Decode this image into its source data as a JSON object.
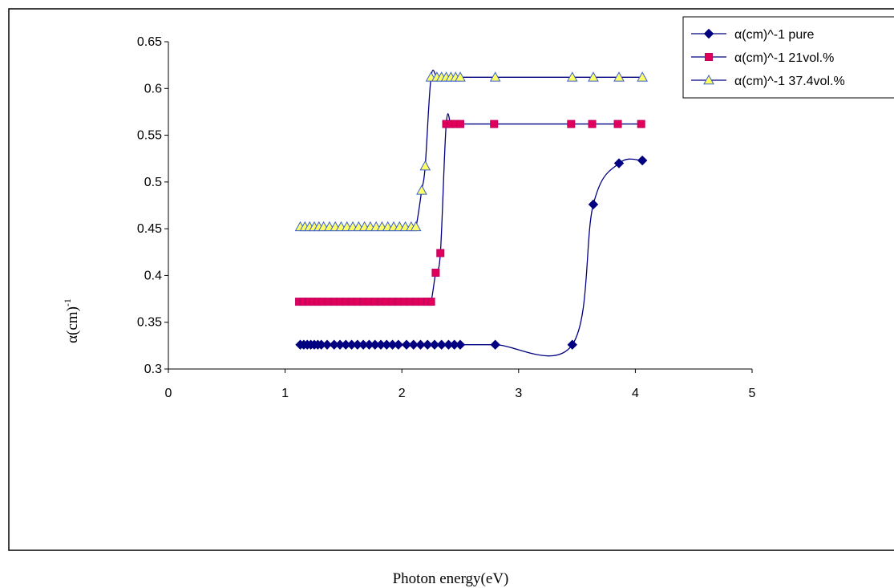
{
  "chart_data": {
    "type": "line",
    "title": "",
    "xlabel": "Photon energy(eV)",
    "ylabel": "α(cm)",
    "ylabel_superscript": "-1",
    "xlim": [
      0,
      5
    ],
    "ylim": [
      0.3,
      0.65
    ],
    "x_ticks": [
      "0",
      "1",
      "2",
      "3",
      "4",
      "5"
    ],
    "y_ticks": [
      "0.3",
      "0.35",
      "0.4",
      "0.45",
      "0.5",
      "0.55",
      "0.6",
      "0.65"
    ],
    "grid": false,
    "legend_position": "top-right",
    "series": [
      {
        "name": "α(cm)^-1 pure",
        "color": "#000080",
        "marker": "diamond",
        "marker_fill": "#000080",
        "x": [
          1.13,
          1.16,
          1.19,
          1.22,
          1.25,
          1.28,
          1.31,
          1.36,
          1.42,
          1.47,
          1.52,
          1.57,
          1.62,
          1.67,
          1.72,
          1.77,
          1.82,
          1.87,
          1.92,
          1.97,
          2.04,
          2.1,
          2.16,
          2.22,
          2.28,
          2.34,
          2.4,
          2.45,
          2.5,
          2.8,
          3.46,
          3.64,
          3.86,
          4.06
        ],
        "y": [
          0.326,
          0.326,
          0.326,
          0.326,
          0.326,
          0.326,
          0.326,
          0.326,
          0.326,
          0.326,
          0.326,
          0.326,
          0.326,
          0.326,
          0.326,
          0.326,
          0.326,
          0.326,
          0.326,
          0.326,
          0.326,
          0.326,
          0.326,
          0.326,
          0.326,
          0.326,
          0.326,
          0.326,
          0.326,
          0.326,
          0.326,
          0.476,
          0.52,
          0.523
        ]
      },
      {
        "name": "α(cm)^-1 21vol.%",
        "color": "#000080",
        "marker": "square",
        "marker_fill": "#e0005a",
        "x": [
          1.12,
          1.16,
          1.2,
          1.24,
          1.28,
          1.32,
          1.37,
          1.42,
          1.47,
          1.52,
          1.57,
          1.62,
          1.67,
          1.72,
          1.77,
          1.82,
          1.87,
          1.92,
          1.97,
          2.02,
          2.07,
          2.12,
          2.17,
          2.22,
          2.25,
          2.29,
          2.33,
          2.38,
          2.42,
          2.46,
          2.5,
          2.79,
          3.45,
          3.63,
          3.85,
          4.05
        ],
        "y": [
          0.372,
          0.372,
          0.372,
          0.372,
          0.372,
          0.372,
          0.372,
          0.372,
          0.372,
          0.372,
          0.372,
          0.372,
          0.372,
          0.372,
          0.372,
          0.372,
          0.372,
          0.372,
          0.372,
          0.372,
          0.372,
          0.372,
          0.372,
          0.372,
          0.372,
          0.403,
          0.424,
          0.562,
          0.562,
          0.562,
          0.562,
          0.562,
          0.562,
          0.562,
          0.562,
          0.562
        ]
      },
      {
        "name": "α(cm)^-1 37.4vol.%",
        "color": "#000080",
        "marker": "triangle",
        "marker_fill": "#ffff66",
        "x": [
          1.13,
          1.17,
          1.21,
          1.25,
          1.29,
          1.33,
          1.38,
          1.43,
          1.48,
          1.53,
          1.58,
          1.63,
          1.68,
          1.73,
          1.78,
          1.83,
          1.88,
          1.93,
          1.98,
          2.03,
          2.08,
          2.12,
          2.17,
          2.2,
          2.25,
          2.3,
          2.34,
          2.38,
          2.42,
          2.46,
          2.5,
          2.8,
          3.46,
          3.64,
          3.86,
          4.06
        ],
        "y": [
          0.452,
          0.452,
          0.452,
          0.452,
          0.452,
          0.452,
          0.452,
          0.452,
          0.452,
          0.452,
          0.452,
          0.452,
          0.452,
          0.452,
          0.452,
          0.452,
          0.452,
          0.452,
          0.452,
          0.452,
          0.452,
          0.452,
          0.491,
          0.517,
          0.612,
          0.612,
          0.612,
          0.612,
          0.612,
          0.612,
          0.612,
          0.612,
          0.612,
          0.612,
          0.612,
          0.612
        ]
      }
    ]
  }
}
